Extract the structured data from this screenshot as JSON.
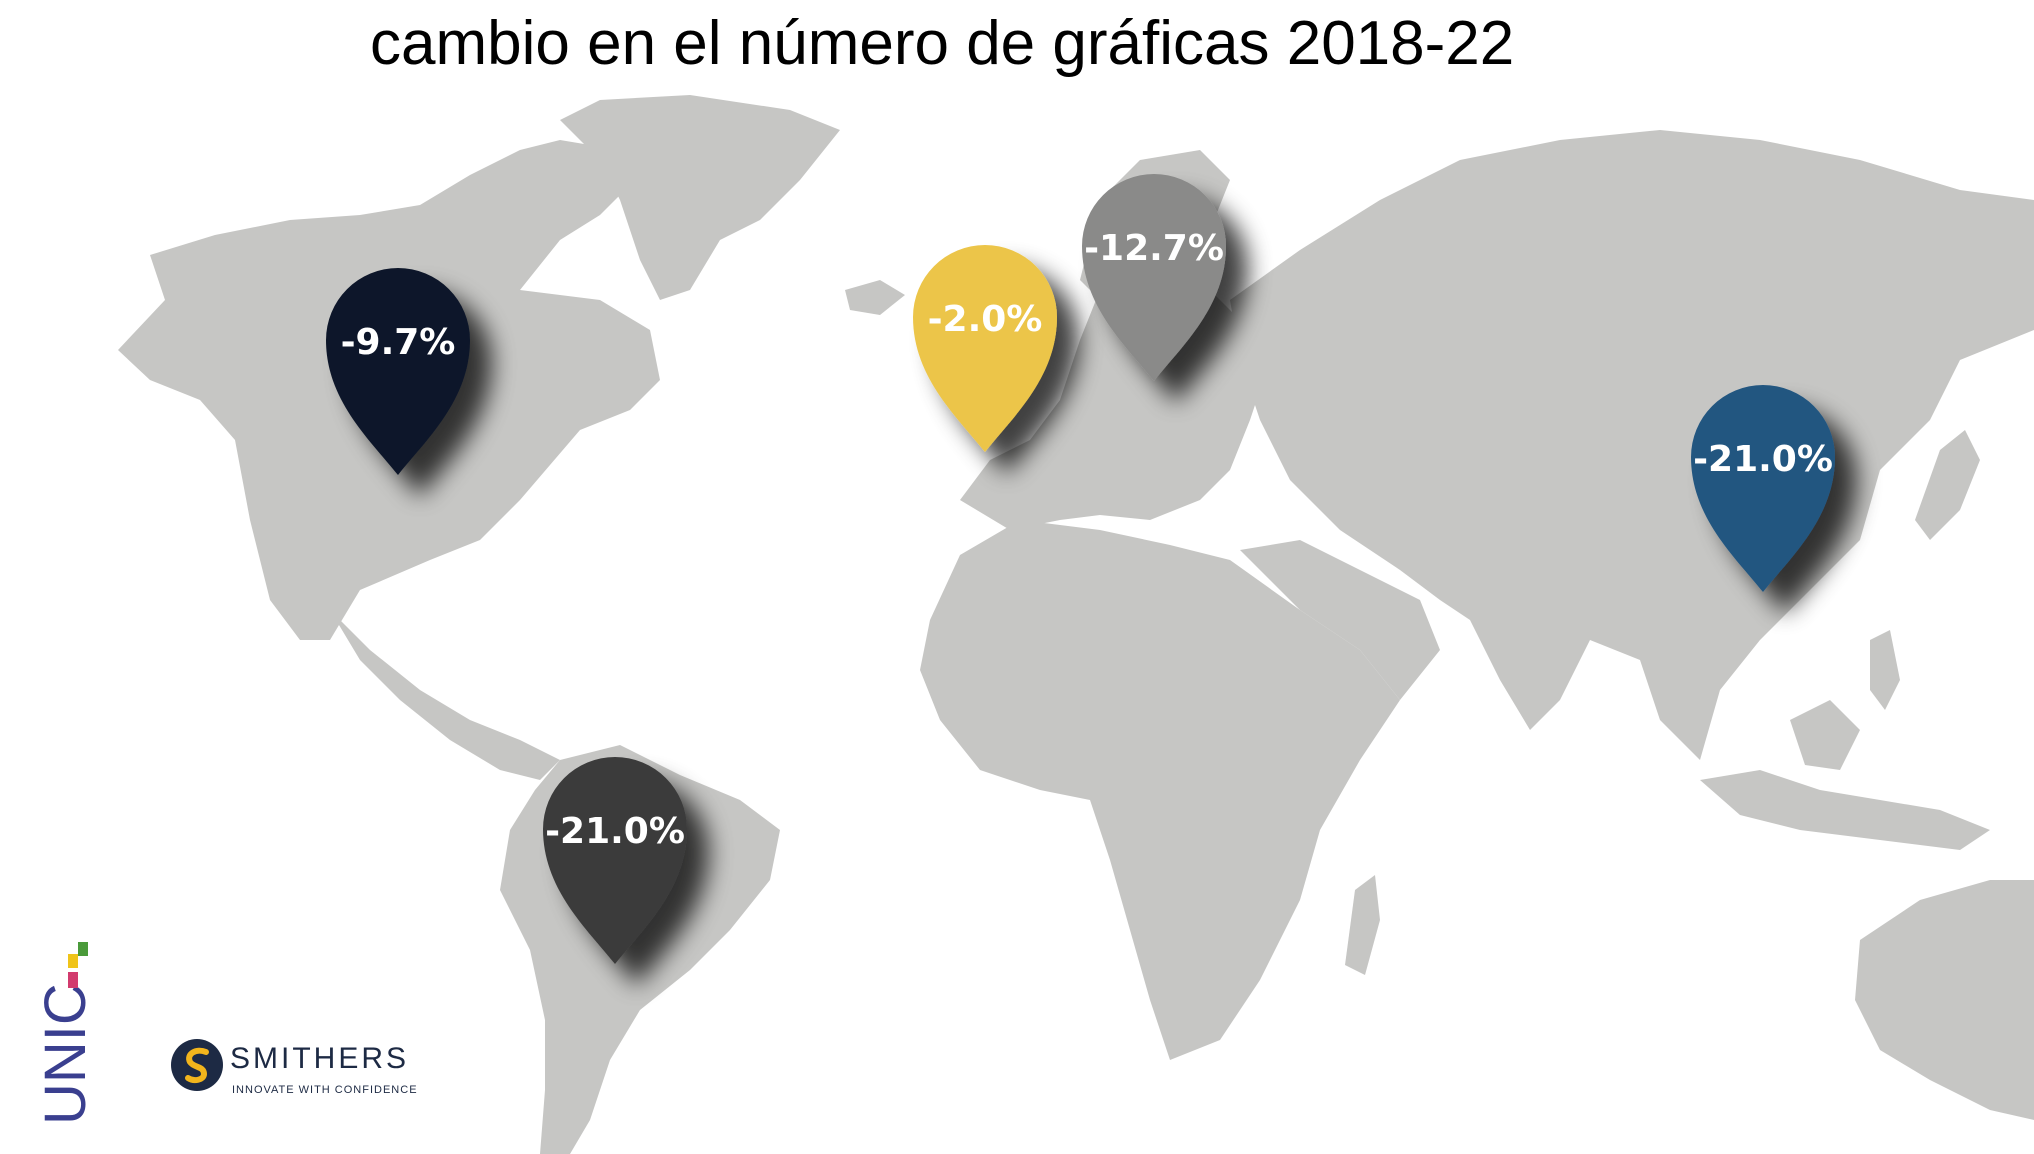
{
  "title": "cambio en el número de gráficas 2018-22",
  "colors": {
    "land": "#c6c6c4",
    "north_america": "#0e1829",
    "south_america": "#3b3b3b",
    "western_europe": "#ecc54a",
    "eastern_europe": "#8a8a89",
    "asia": "#245680"
  },
  "regions": [
    {
      "id": "north_america",
      "label": "-9.7%",
      "value": -9.7
    },
    {
      "id": "western_europe",
      "label": "-2.0%",
      "value": -2.0
    },
    {
      "id": "eastern_europe",
      "label": "-12.7%",
      "value": -12.7
    },
    {
      "id": "asia",
      "label": "-21.0%",
      "value": -21.0
    },
    {
      "id": "south_america",
      "label": "-21.0%",
      "value": -21.0
    }
  ],
  "logos": {
    "unic": "UNIC",
    "smithers_name": "SMITHERS",
    "smithers_tagline": "INNOVATE WITH CONFIDENCE"
  }
}
